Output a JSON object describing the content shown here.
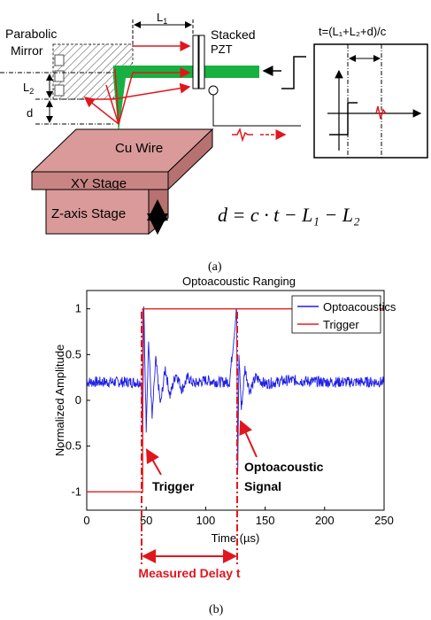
{
  "colors": {
    "optoacoustics": "#1f1fe6",
    "trigger": "#e61f1f",
    "beam": "#18b040",
    "stage": "#d99a99",
    "stage_dark": "#c98584",
    "annotation_red": "#e0161e"
  },
  "diagram": {
    "labels": {
      "parabolic": "Parabolic",
      "mirror": "Mirror",
      "l1": "L",
      "l1_sub": "1",
      "l2": "L",
      "l2_sub": "2",
      "d": "d",
      "stacked": "Stacked",
      "pzt": "PZT",
      "cu_wire": "Cu Wire",
      "xy_stage": "XY Stage",
      "z_stage": "Z-axis Stage",
      "formula_inset": "t=(L₁+L₂+d)/c",
      "equation": "d = c · t − L₁ − L₂",
      "caption_a": "(a)"
    }
  },
  "chart_data": {
    "type": "line",
    "title": "Optoacoustic Ranging",
    "xlabel": "Time (µs)",
    "ylabel": "Normalized Amplitude",
    "xlim": [
      0,
      250
    ],
    "ylim": [
      -1.2,
      1.2
    ],
    "xticks": [
      "0",
      "50",
      "100",
      "150",
      "200",
      "250"
    ],
    "yticks": [
      "1",
      "0.5",
      "0",
      "-0.5",
      "-1"
    ],
    "grid": false,
    "legend_position": "top-right",
    "series": [
      {
        "name": "Optoacoustics",
        "x": [
          0,
          46,
          47,
          48,
          50,
          52,
          55,
          58,
          62,
          66,
          70,
          75,
          80,
          85,
          90,
          100,
          110,
          120,
          126,
          127,
          128,
          130,
          133,
          137,
          142,
          150,
          170,
          200,
          230,
          250
        ],
        "y": [
          0.2,
          0.2,
          -0.5,
          1.0,
          -0.3,
          0.65,
          -0.2,
          0.45,
          -0.05,
          0.35,
          0.05,
          0.3,
          0.12,
          0.25,
          0.18,
          0.22,
          0.2,
          0.2,
          1.0,
          -0.78,
          0.5,
          -0.1,
          0.35,
          0.1,
          0.25,
          0.18,
          0.22,
          0.2,
          0.2,
          0.2
        ]
      },
      {
        "name": "Trigger",
        "x": [
          0,
          47,
          47,
          250
        ],
        "y": [
          -1,
          -1,
          1,
          1
        ]
      }
    ],
    "annotations": {
      "trigger": "Trigger",
      "optoacoustic": "Optoacoustic",
      "signal": "Signal",
      "measured_delay": "Measured Delay t"
    },
    "caption": "(b)"
  }
}
